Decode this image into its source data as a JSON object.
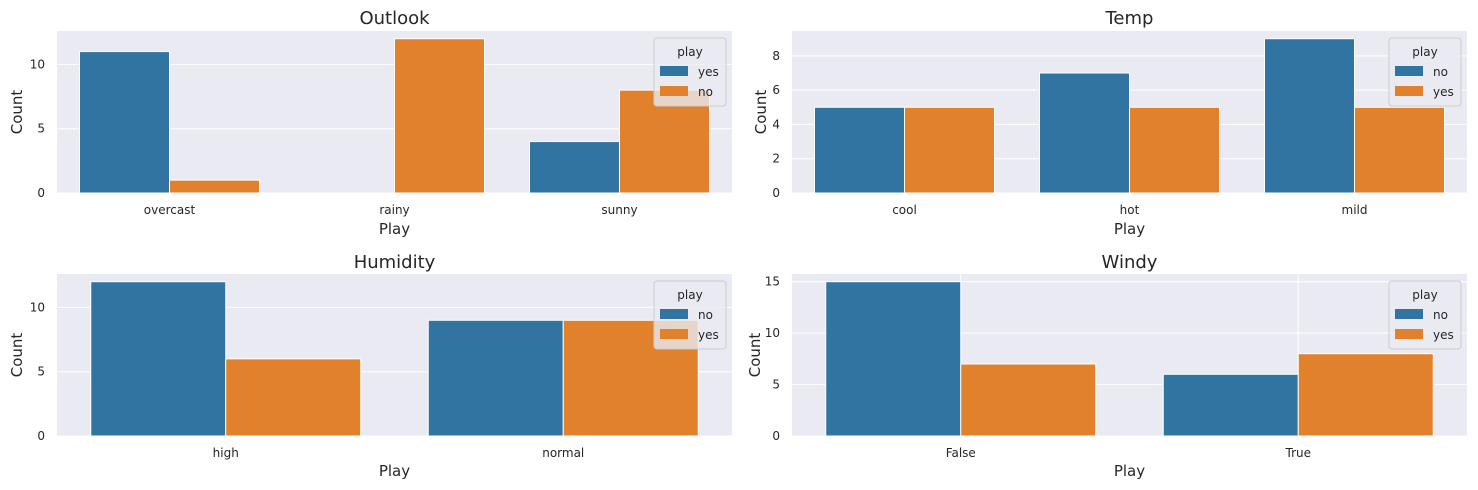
{
  "colors": {
    "blue": "#3274a1",
    "orange": "#e1812c"
  },
  "chart_data": [
    {
      "type": "bar",
      "title": "Outlook",
      "xlabel": "Play",
      "ylabel": "Count",
      "categories": [
        "overcast",
        "rainy",
        "sunny"
      ],
      "series": [
        {
          "name": "yes",
          "color": "#3274a1",
          "values": [
            11,
            0,
            4
          ]
        },
        {
          "name": "no",
          "color": "#e1812c",
          "values": [
            1,
            12,
            8
          ]
        }
      ],
      "ylim": [
        0,
        12.6
      ],
      "yticks": [
        0,
        5,
        10
      ],
      "legend_title": "play",
      "legend_position": "top-right",
      "grid": "horizontal"
    },
    {
      "type": "bar",
      "title": "Temp",
      "xlabel": "Play",
      "ylabel": "Count",
      "categories": [
        "cool",
        "hot",
        "mild"
      ],
      "series": [
        {
          "name": "no",
          "color": "#3274a1",
          "values": [
            5,
            7,
            9
          ]
        },
        {
          "name": "yes",
          "color": "#e1812c",
          "values": [
            5,
            5,
            5
          ]
        }
      ],
      "ylim": [
        0,
        9.45
      ],
      "yticks": [
        0,
        2,
        4,
        6,
        8
      ],
      "legend_title": "play",
      "legend_position": "top-right",
      "grid": "horizontal"
    },
    {
      "type": "bar",
      "title": "Humidity",
      "xlabel": "Play",
      "ylabel": "Count",
      "categories": [
        "high",
        "normal"
      ],
      "series": [
        {
          "name": "no",
          "color": "#3274a1",
          "values": [
            12,
            9
          ]
        },
        {
          "name": "yes",
          "color": "#e1812c",
          "values": [
            6,
            9
          ]
        }
      ],
      "ylim": [
        0,
        12.6
      ],
      "yticks": [
        0,
        5,
        10
      ],
      "legend_title": "play",
      "legend_position": "top-right",
      "grid": "horizontal"
    },
    {
      "type": "bar",
      "title": "Windy",
      "xlabel": "Play",
      "ylabel": "Count",
      "categories": [
        "False",
        "True"
      ],
      "series": [
        {
          "name": "no",
          "color": "#3274a1",
          "values": [
            15,
            6
          ]
        },
        {
          "name": "yes",
          "color": "#e1812c",
          "values": [
            7,
            8
          ]
        }
      ],
      "ylim": [
        0,
        15.75
      ],
      "yticks": [
        0,
        5,
        10,
        15
      ],
      "legend_title": "play",
      "legend_position": "top-right",
      "grid": "both"
    }
  ]
}
